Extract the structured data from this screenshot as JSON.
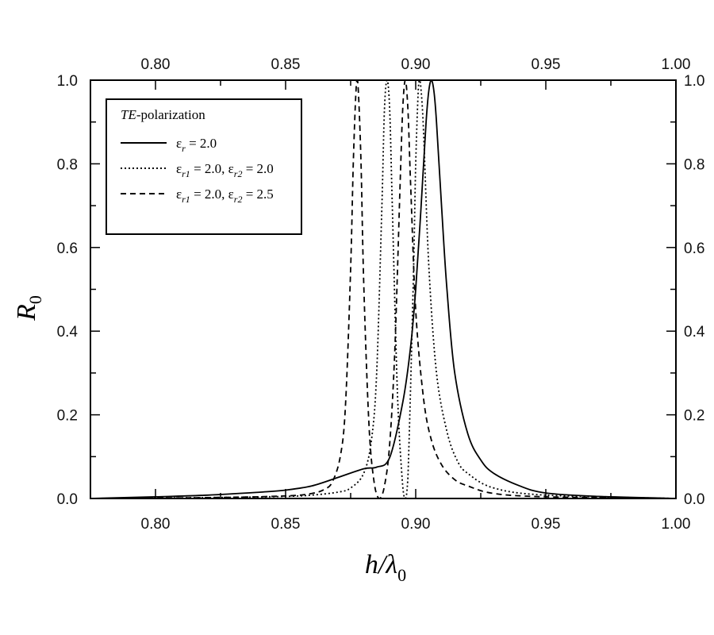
{
  "chart_data": {
    "type": "line",
    "title": "",
    "xlabel": "h/λ0",
    "ylabel": "R0",
    "xlim": [
      0.775,
      1.0
    ],
    "ylim": [
      0.0,
      1.0
    ],
    "xticks": [
      "0.80",
      "0.85",
      "0.90",
      "0.95",
      "1.00"
    ],
    "yticks": [
      "0.0",
      "0.2",
      "0.4",
      "0.6",
      "0.8",
      "1.0"
    ],
    "top_axis_ticks": [
      "0.80",
      "0.85",
      "0.90",
      "0.95",
      "1.00"
    ],
    "right_axis_ticks": [
      "0.0",
      "0.2",
      "0.4",
      "0.6",
      "0.8",
      "1.0"
    ],
    "grid": false,
    "legend_position": "upper-left",
    "legend": {
      "title_italic": "TE",
      "title_rest": "-polarization",
      "entries": [
        {
          "style": "solid",
          "label": "εr = 2.0"
        },
        {
          "style": "dotted",
          "label": "εr1 = 2.0, εr2 = 2.0"
        },
        {
          "style": "dashed",
          "label": "εr1 = 2.0, εr2 = 2.5"
        }
      ]
    },
    "series": [
      {
        "name": "εr = 2.0",
        "style": "solid",
        "peaks": [
          0.906
        ],
        "x": [
          0.775,
          0.8,
          0.82,
          0.84,
          0.85,
          0.86,
          0.87,
          0.88,
          0.885,
          0.89,
          0.895,
          0.898,
          0.9,
          0.902,
          0.904,
          0.905,
          0.906,
          0.907,
          0.908,
          0.91,
          0.912,
          0.915,
          0.92,
          0.925,
          0.93,
          0.94,
          0.95,
          0.97,
          1.0
        ],
        "values": [
          0.0,
          0.004,
          0.008,
          0.015,
          0.02,
          0.03,
          0.05,
          0.071,
          0.075,
          0.098,
          0.229,
          0.36,
          0.5,
          0.692,
          0.9,
          0.973,
          1.0,
          0.973,
          0.9,
          0.692,
          0.5,
          0.3,
          0.155,
          0.092,
          0.06,
          0.03,
          0.013,
          0.005,
          0.0
        ]
      },
      {
        "name": "εr1 = 2.0, εr2 = 2.0",
        "style": "dotted",
        "peaks": [
          0.889,
          0.9015
        ],
        "zero": 0.896,
        "x": [
          0.775,
          0.82,
          0.85,
          0.86,
          0.87,
          0.875,
          0.88,
          0.883,
          0.885,
          0.887,
          0.888,
          0.889,
          0.89,
          0.891,
          0.893,
          0.895,
          0.896,
          0.897,
          0.899,
          0.9,
          0.901,
          0.9015,
          0.902,
          0.903,
          0.905,
          0.908,
          0.912,
          0.916,
          0.92,
          0.93,
          0.95,
          1.0
        ],
        "values": [
          0.0,
          0.002,
          0.005,
          0.008,
          0.015,
          0.025,
          0.06,
          0.14,
          0.3,
          0.7,
          0.93,
          1.0,
          0.93,
          0.7,
          0.25,
          0.03,
          0.0,
          0.05,
          0.5,
          0.8,
          0.98,
          1.0,
          0.98,
          0.88,
          0.56,
          0.3,
          0.16,
          0.09,
          0.06,
          0.025,
          0.008,
          0.0
        ]
      },
      {
        "name": "εr1 = 2.0, εr2 = 2.5",
        "style": "dashed",
        "peaks": [
          0.8775,
          0.896
        ],
        "zero": 0.886,
        "x": [
          0.775,
          0.82,
          0.85,
          0.86,
          0.865,
          0.868,
          0.871,
          0.873,
          0.875,
          0.876,
          0.877,
          0.8775,
          0.878,
          0.879,
          0.88,
          0.882,
          0.884,
          0.886,
          0.888,
          0.89,
          0.892,
          0.894,
          0.895,
          0.896,
          0.897,
          0.898,
          0.9,
          0.903,
          0.906,
          0.91,
          0.915,
          0.92,
          0.93,
          0.95,
          1.0
        ],
        "values": [
          0.0,
          0.002,
          0.006,
          0.012,
          0.022,
          0.04,
          0.1,
          0.22,
          0.55,
          0.8,
          0.97,
          1.0,
          0.97,
          0.8,
          0.52,
          0.18,
          0.04,
          0.0,
          0.03,
          0.13,
          0.36,
          0.75,
          0.93,
          1.0,
          0.93,
          0.76,
          0.45,
          0.24,
          0.14,
          0.08,
          0.045,
          0.03,
          0.012,
          0.004,
          0.0
        ]
      }
    ]
  }
}
